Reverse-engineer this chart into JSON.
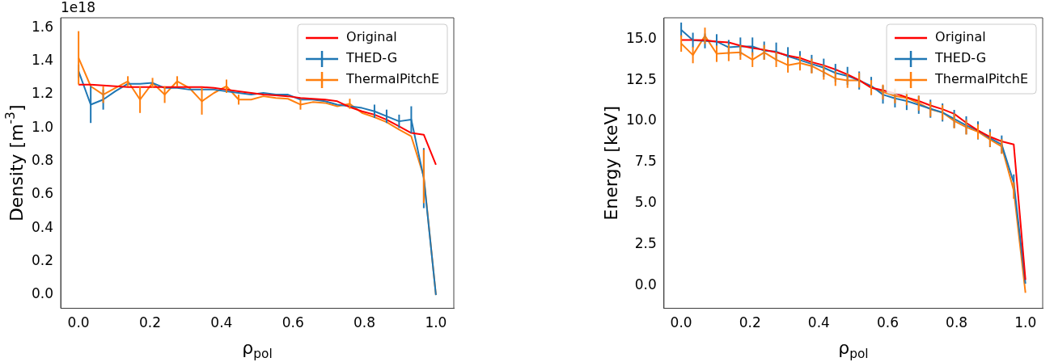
{
  "chart_data": [
    {
      "type": "line",
      "ylabel": "Density [m$^{-3}$]",
      "xlabel": "ρ$_{pol}$",
      "annotations": [
        "1e18"
      ],
      "x": [
        0,
        0.034,
        0.069,
        0.103,
        0.138,
        0.172,
        0.207,
        0.241,
        0.276,
        0.31,
        0.345,
        0.379,
        0.414,
        0.448,
        0.483,
        0.517,
        0.552,
        0.586,
        0.621,
        0.655,
        0.69,
        0.724,
        0.759,
        0.793,
        0.828,
        0.862,
        0.897,
        0.931,
        0.966,
        1.0
      ],
      "series": [
        {
          "name": "Original",
          "color": "#ff0000",
          "values": [
            1.26,
            1.26,
            1.255,
            1.25,
            1.245,
            1.245,
            1.245,
            1.245,
            1.245,
            1.245,
            1.245,
            1.24,
            1.23,
            1.22,
            1.21,
            1.2,
            1.195,
            1.19,
            1.18,
            1.175,
            1.17,
            1.16,
            1.125,
            1.1,
            1.08,
            1.05,
            1.01,
            0.97,
            0.96,
            0.78
          ]
        },
        {
          "name": "THED-G",
          "color": "#1f77b4",
          "values": [
            1.34,
            1.14,
            1.17,
            1.22,
            1.265,
            1.265,
            1.27,
            1.24,
            1.24,
            1.23,
            1.23,
            1.23,
            1.22,
            1.21,
            1.2,
            1.21,
            1.2,
            1.2,
            1.17,
            1.17,
            1.16,
            1.14,
            1.13,
            1.12,
            1.1,
            1.07,
            1.04,
            1.05,
            0.7,
            0.0
          ],
          "errors": [
            0.04,
            0.11,
            0.06,
            null,
            null,
            null,
            null,
            null,
            null,
            null,
            null,
            null,
            null,
            null,
            null,
            null,
            null,
            null,
            null,
            null,
            null,
            null,
            null,
            null,
            0.04,
            0.04,
            0.04,
            0.08,
            0.18,
            null
          ]
        },
        {
          "name": "ThermalPitchE",
          "color": "#ff7f0e",
          "values": [
            1.42,
            1.25,
            1.2,
            1.24,
            1.28,
            1.17,
            1.27,
            1.2,
            1.28,
            1.24,
            1.16,
            1.21,
            1.25,
            1.17,
            1.17,
            1.19,
            1.18,
            1.175,
            1.14,
            1.155,
            1.15,
            1.13,
            1.145,
            1.09,
            1.065,
            1.035,
            0.99,
            0.95,
            0.71,
            0.0
          ],
          "errors": [
            0.16,
            null,
            0.05,
            null,
            0.03,
            0.08,
            0.03,
            0.05,
            0.03,
            null,
            0.08,
            null,
            0.04,
            0.03,
            null,
            null,
            null,
            null,
            0.03,
            null,
            null,
            null,
            0.03,
            null,
            null,
            null,
            null,
            null,
            0.16,
            null
          ]
        }
      ],
      "xlim": [
        -0.05,
        1.05
      ],
      "ylim": [
        -0.08,
        1.66
      ],
      "xticks": [
        {
          "value": 0,
          "label": "0.0"
        },
        {
          "value": 0.2,
          "label": "0.2"
        },
        {
          "value": 0.4,
          "label": "0.4"
        },
        {
          "value": 0.6,
          "label": "0.6"
        },
        {
          "value": 0.8,
          "label": "0.8"
        },
        {
          "value": 1,
          "label": "1.0"
        }
      ],
      "yticks": [
        {
          "value": 0,
          "label": "0.0"
        },
        {
          "value": 0.2,
          "label": "0.2"
        },
        {
          "value": 0.4,
          "label": "0.4"
        },
        {
          "value": 0.6,
          "label": "0.6"
        },
        {
          "value": 0.8,
          "label": "0.8"
        },
        {
          "value": 1,
          "label": "1.0"
        },
        {
          "value": 1.2,
          "label": "1.2"
        },
        {
          "value": 1.4,
          "label": "1.4"
        },
        {
          "value": 1.6,
          "label": "1.6"
        }
      ],
      "grid": false,
      "legend": "top right"
    },
    {
      "type": "line",
      "ylabel": "Energy [keV]",
      "xlabel": "ρ$_{pol}$",
      "x": [
        0,
        0.034,
        0.069,
        0.103,
        0.138,
        0.172,
        0.207,
        0.241,
        0.276,
        0.31,
        0.345,
        0.379,
        0.414,
        0.448,
        0.483,
        0.517,
        0.552,
        0.586,
        0.621,
        0.655,
        0.69,
        0.724,
        0.759,
        0.793,
        0.828,
        0.862,
        0.897,
        0.931,
        0.966,
        1.0
      ],
      "series": [
        {
          "name": "Original",
          "color": "#ff0000",
          "values": [
            14.95,
            14.95,
            14.93,
            14.85,
            14.8,
            14.6,
            14.45,
            14.35,
            14.2,
            14.0,
            13.85,
            13.6,
            13.4,
            13.15,
            12.85,
            12.5,
            12.04,
            11.88,
            11.7,
            11.46,
            11.23,
            10.96,
            10.73,
            10.45,
            9.9,
            9.44,
            9.05,
            8.77,
            8.58,
            0.33
          ]
        },
        {
          "name": "THED-G",
          "color": "#1f77b4",
          "values": [
            15.56,
            14.94,
            14.89,
            14.85,
            14.5,
            14.55,
            14.55,
            14.3,
            14.24,
            13.96,
            13.72,
            13.49,
            13.26,
            12.94,
            12.76,
            12.48,
            12.15,
            11.62,
            11.39,
            11.23,
            11.0,
            10.76,
            10.53,
            10.14,
            9.75,
            9.44,
            8.97,
            8.58,
            6.26,
            0.1
          ],
          "errors": [
            0.45,
            0.45,
            0.45,
            0.45,
            0.45,
            0.55,
            0.55,
            0.55,
            0.55,
            0.55,
            0.55,
            0.55,
            0.55,
            0.55,
            0.55,
            0.55,
            0.55,
            0.55,
            0.55,
            0.55,
            0.55,
            0.55,
            0.55,
            0.55,
            0.55,
            0.55,
            0.55,
            0.55,
            0.5,
            null
          ]
        },
        {
          "name": "ThermalPitchE",
          "color": "#ff7f0e",
          "values": [
            14.73,
            14.03,
            15.2,
            14.11,
            14.16,
            14.19,
            13.75,
            14.19,
            13.75,
            13.41,
            13.54,
            13.36,
            12.98,
            12.6,
            12.48,
            12.5,
            12.05,
            11.78,
            11.54,
            11.42,
            11.1,
            10.73,
            10.53,
            10.02,
            9.64,
            9.36,
            8.89,
            8.46,
            5.78,
            -0.45
          ],
          "errors": [
            0.5,
            0.5,
            0.5,
            0.5,
            0.5,
            0.45,
            0.45,
            0.45,
            0.45,
            0.45,
            0.45,
            0.45,
            0.45,
            0.45,
            0.45,
            0.45,
            0.45,
            0.45,
            0.45,
            0.45,
            0.45,
            0.45,
            0.45,
            0.45,
            0.45,
            0.45,
            0.45,
            0.45,
            0.5,
            null
          ]
        }
      ],
      "xlim": [
        -0.05,
        1.05
      ],
      "ylim": [
        -1.4,
        16.3
      ],
      "xticks": [
        {
          "value": 0,
          "label": "0.0"
        },
        {
          "value": 0.2,
          "label": "0.2"
        },
        {
          "value": 0.4,
          "label": "0.4"
        },
        {
          "value": 0.6,
          "label": "0.6"
        },
        {
          "value": 0.8,
          "label": "0.8"
        },
        {
          "value": 1,
          "label": "1.0"
        }
      ],
      "yticks": [
        {
          "value": 0,
          "label": "0.0"
        },
        {
          "value": 2.5,
          "label": "2.5"
        },
        {
          "value": 5,
          "label": "5.0"
        },
        {
          "value": 7.5,
          "label": "7.5"
        },
        {
          "value": 10,
          "label": "10.0"
        },
        {
          "value": 12.5,
          "label": "12.5"
        },
        {
          "value": 15,
          "label": "15.0"
        }
      ],
      "grid": false,
      "legend": "top right"
    }
  ]
}
